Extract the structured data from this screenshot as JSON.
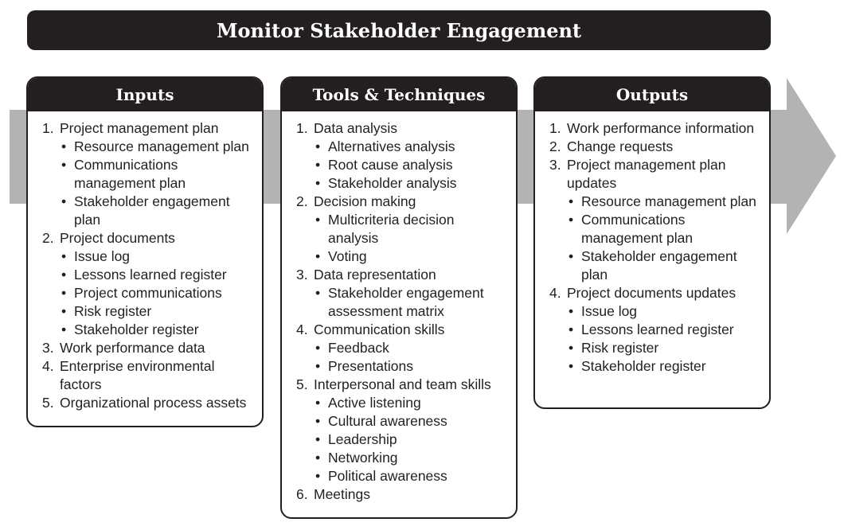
{
  "title": "Monitor Stakeholder Engagement",
  "colors": {
    "dark": "#231f20",
    "arrow": "#b3b3b3",
    "panel_bg": "#ffffff"
  },
  "panels": [
    {
      "heading": "Inputs",
      "items": [
        {
          "num": "1.",
          "text": "Project management plan",
          "subs": [
            "Resource management plan",
            "Communications management plan",
            "Stakeholder engagement plan"
          ]
        },
        {
          "num": "2.",
          "text": "Project documents",
          "subs": [
            "Issue log",
            "Lessons learned register",
            "Project communications",
            "Risk register",
            "Stakeholder register"
          ]
        },
        {
          "num": "3.",
          "text": "Work performance data",
          "subs": []
        },
        {
          "num": "4.",
          "text": "Enterprise environmental factors",
          "subs": []
        },
        {
          "num": "5.",
          "text": "Organizational process assets",
          "subs": []
        }
      ]
    },
    {
      "heading": "Tools & Techniques",
      "items": [
        {
          "num": "1.",
          "text": "Data analysis",
          "subs": [
            "Alternatives analysis",
            "Root cause analysis",
            "Stakeholder analysis"
          ]
        },
        {
          "num": "2.",
          "text": "Decision making",
          "subs": [
            "Multicriteria decision analysis",
            "Voting"
          ]
        },
        {
          "num": "3.",
          "text": "Data representation",
          "subs": [
            "Stakeholder engagement assessment matrix"
          ]
        },
        {
          "num": "4.",
          "text": "Communication skills",
          "subs": [
            "Feedback",
            "Presentations"
          ]
        },
        {
          "num": "5.",
          "text": "Interpersonal and team skills",
          "subs": [
            "Active listening",
            "Cultural awareness",
            "Leadership",
            "Networking",
            "Political awareness"
          ]
        },
        {
          "num": "6.",
          "text": "Meetings",
          "subs": []
        }
      ]
    },
    {
      "heading": "Outputs",
      "items": [
        {
          "num": "1.",
          "text": "Work performance information",
          "subs": []
        },
        {
          "num": "2.",
          "text": "Change requests",
          "subs": []
        },
        {
          "num": "3.",
          "text": "Project management plan updates",
          "subs": [
            "Resource management plan",
            "Communications management plan",
            "Stakeholder engagement plan"
          ]
        },
        {
          "num": "4.",
          "text": "Project documents updates",
          "subs": [
            "Issue log",
            "Lessons learned register",
            "Risk register",
            "Stakeholder register"
          ]
        }
      ]
    }
  ]
}
